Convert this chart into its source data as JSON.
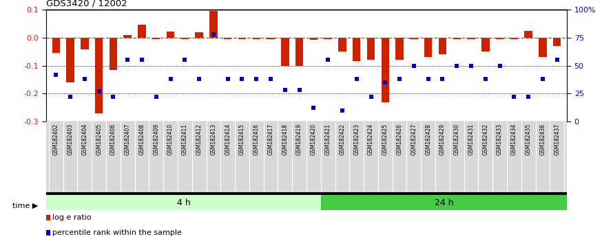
{
  "title": "GDS3420 / 12002",
  "samples": [
    "GSM182402",
    "GSM182403",
    "GSM182404",
    "GSM182405",
    "GSM182406",
    "GSM182407",
    "GSM182408",
    "GSM182409",
    "GSM182410",
    "GSM182411",
    "GSM182412",
    "GSM182413",
    "GSM182414",
    "GSM182415",
    "GSM182416",
    "GSM182417",
    "GSM182418",
    "GSM182419",
    "GSM182420",
    "GSM182421",
    "GSM182422",
    "GSM182423",
    "GSM182424",
    "GSM182425",
    "GSM182426",
    "GSM182427",
    "GSM182428",
    "GSM182429",
    "GSM182430",
    "GSM182431",
    "GSM182432",
    "GSM182433",
    "GSM182434",
    "GSM182435",
    "GSM182436",
    "GSM182437"
  ],
  "log_ratio": [
    -0.055,
    -0.16,
    -0.042,
    -0.27,
    -0.115,
    0.01,
    0.047,
    -0.005,
    0.023,
    -0.005,
    0.02,
    0.095,
    -0.005,
    -0.005,
    -0.005,
    -0.005,
    -0.1,
    -0.1,
    -0.007,
    -0.005,
    -0.05,
    -0.085,
    -0.08,
    -0.23,
    -0.08,
    -0.005,
    -0.07,
    -0.06,
    -0.005,
    -0.005,
    -0.05,
    -0.005,
    -0.005,
    0.025,
    -0.07,
    -0.03
  ],
  "percentile": [
    42,
    22,
    38,
    27,
    22,
    55,
    55,
    22,
    38,
    55,
    38,
    78,
    38,
    38,
    38,
    38,
    28,
    28,
    12,
    55,
    10,
    38,
    22,
    35,
    38,
    50,
    38,
    38,
    50,
    50,
    38,
    50,
    22,
    22,
    38,
    55
  ],
  "n_4h": 19,
  "bar_color": "#CC2200",
  "dot_color": "#0000CC",
  "zero_line_color": "#CC3300",
  "group_4h_color": "#CCFFCC",
  "group_24h_color": "#44CC44",
  "left_ylim": [
    -0.3,
    0.1
  ],
  "right_ylim": [
    0,
    100
  ],
  "left_yticks": [
    0.1,
    0.0,
    -0.1,
    -0.2,
    -0.3
  ],
  "right_yticks": [
    100,
    75,
    50,
    25,
    0
  ],
  "right_yticklabels": [
    "100%",
    "75",
    "50",
    "25",
    "0"
  ]
}
